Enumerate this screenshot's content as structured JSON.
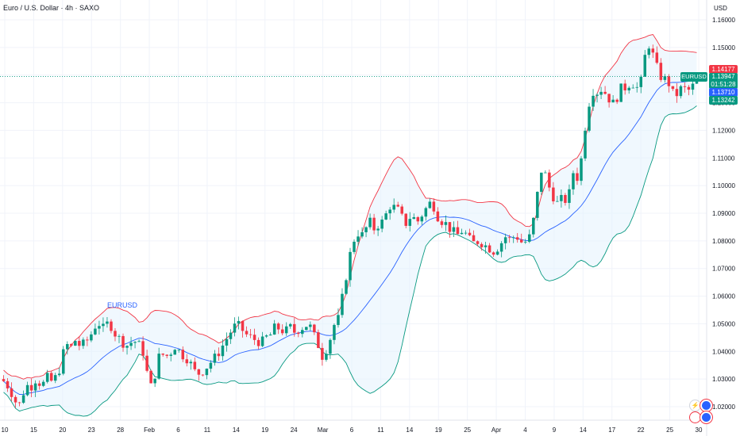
{
  "header": {
    "title": "Euro / U.S. Dollar · 4h · SAXO",
    "currency": "USD"
  },
  "series_label": "EURUSD",
  "price_tags": {
    "upper": "1.14177",
    "last": "1.13947",
    "countdown": "01:51:28",
    "middle": "1.13710",
    "lower": "1.13242",
    "symbol": "EURUSD"
  },
  "colors": {
    "up": "#089981",
    "down": "#f23645",
    "upper_band": "#f23645",
    "basis": "#2962ff",
    "lower_band": "#089981",
    "band_fill": "#e3f2fd",
    "grid": "#f0f3fa"
  },
  "icons": [
    "lightning-icon",
    "link-icon"
  ],
  "chart_data": {
    "type": "candlestick",
    "title": "Euro / U.S. Dollar · 4h · SAXO",
    "xlabel": "",
    "ylabel": "USD",
    "ylim": [
      1.015,
      1.163
    ],
    "grid": true,
    "x_ticks": [
      "10",
      "15",
      "20",
      "23",
      "28",
      "Feb",
      "6",
      "11",
      "14",
      "19",
      "24",
      "Mar",
      "6",
      "11",
      "14",
      "19",
      "25",
      "Apr",
      "4",
      "9",
      "14",
      "17",
      "22",
      "25",
      "30"
    ],
    "y_ticks": [
      1.02,
      1.03,
      1.04,
      1.05,
      1.06,
      1.07,
      1.08,
      1.09,
      1.1,
      1.11,
      1.12,
      1.13,
      1.14,
      1.15,
      1.16
    ],
    "indicator": "Bollinger Bands (20, 2)",
    "close_path": [
      [
        0,
        1.03
      ],
      [
        5,
        1.0285
      ],
      [
        10,
        1.0265
      ],
      [
        14,
        1.024
      ],
      [
        18,
        1.0215
      ],
      [
        22,
        1.0205
      ],
      [
        26,
        1.024
      ],
      [
        31,
        1.028
      ],
      [
        36,
        1.0265
      ],
      [
        41,
        1.03
      ],
      [
        46,
        1.029
      ],
      [
        51,
        1.0275
      ],
      [
        56,
        1.031
      ],
      [
        61,
        1.029
      ],
      [
        66,
        1.03
      ],
      [
        71,
        1.032
      ],
      [
        76,
        1.038
      ],
      [
        80,
        1.043
      ],
      [
        86,
        1.041
      ],
      [
        92,
        1.044
      ],
      [
        98,
        1.042
      ],
      [
        104,
        1.043
      ],
      [
        110,
        1.045
      ],
      [
        116,
        1.049
      ],
      [
        122,
        1.05
      ],
      [
        128,
        1.048
      ],
      [
        134,
        1.051
      ],
      [
        140,
        1.047
      ],
      [
        146,
        1.045
      ],
      [
        152,
        1.043
      ],
      [
        158,
        1.042
      ],
      [
        164,
        1.044
      ],
      [
        170,
        1.043
      ],
      [
        175,
        1.041
      ],
      [
        180,
        1.037
      ],
      [
        184,
        1.026
      ],
      [
        188,
        1.028
      ],
      [
        193,
        1.033
      ],
      [
        198,
        1.04
      ],
      [
        204,
        1.038
      ],
      [
        210,
        1.039
      ],
      [
        216,
        1.042
      ],
      [
        222,
        1.04
      ],
      [
        228,
        1.038
      ],
      [
        234,
        1.037
      ],
      [
        240,
        1.033
      ],
      [
        246,
        1.032
      ],
      [
        252,
        1.033
      ],
      [
        258,
        1.035
      ],
      [
        264,
        1.037
      ],
      [
        270,
        1.039
      ],
      [
        276,
        1.042
      ],
      [
        282,
        1.045
      ],
      [
        288,
        1.048
      ],
      [
        294,
        1.05
      ],
      [
        300,
        1.048
      ],
      [
        306,
        1.046
      ],
      [
        312,
        1.045
      ],
      [
        318,
        1.044
      ],
      [
        324,
        1.043
      ],
      [
        330,
        1.045
      ],
      [
        336,
        1.046
      ],
      [
        342,
        1.049
      ],
      [
        348,
        1.048
      ],
      [
        354,
        1.047
      ],
      [
        360,
        1.049
      ],
      [
        366,
        1.047
      ],
      [
        372,
        1.048
      ],
      [
        378,
        1.049
      ],
      [
        384,
        1.05
      ],
      [
        390,
        1.046
      ],
      [
        396,
        1.042
      ],
      [
        401,
        1.038
      ],
      [
        406,
        1.041
      ],
      [
        411,
        1.045
      ],
      [
        416,
        1.05
      ],
      [
        421,
        1.052
      ],
      [
        426,
        1.06
      ],
      [
        431,
        1.068
      ],
      [
        436,
        1.076
      ],
      [
        441,
        1.081
      ],
      [
        446,
        1.083
      ],
      [
        451,
        1.082
      ],
      [
        456,
        1.085
      ],
      [
        461,
        1.087
      ],
      [
        466,
        1.084
      ],
      [
        471,
        1.086
      ],
      [
        476,
        1.087
      ],
      [
        481,
        1.09
      ],
      [
        486,
        1.093
      ],
      [
        491,
        1.092
      ],
      [
        496,
        1.091
      ],
      [
        501,
        1.088
      ],
      [
        506,
        1.086
      ],
      [
        511,
        1.089
      ],
      [
        516,
        1.088
      ],
      [
        521,
        1.087
      ],
      [
        526,
        1.09
      ],
      [
        531,
        1.092
      ],
      [
        536,
        1.094
      ],
      [
        541,
        1.092
      ],
      [
        546,
        1.088
      ],
      [
        551,
        1.087
      ],
      [
        556,
        1.086
      ],
      [
        561,
        1.084
      ],
      [
        566,
        1.083
      ],
      [
        571,
        1.082
      ],
      [
        576,
        1.084
      ],
      [
        581,
        1.082
      ],
      [
        586,
        1.08
      ],
      [
        591,
        1.079
      ],
      [
        596,
        1.08
      ],
      [
        601,
        1.079
      ],
      [
        606,
        1.078
      ],
      [
        611,
        1.077
      ],
      [
        616,
        1.076
      ],
      [
        621,
        1.078
      ],
      [
        626,
        1.08
      ],
      [
        631,
        1.082
      ],
      [
        636,
        1.08
      ],
      [
        641,
        1.082
      ],
      [
        646,
        1.081
      ],
      [
        651,
        1.079
      ],
      [
        656,
        1.08
      ],
      [
        661,
        1.082
      ],
      [
        666,
        1.09
      ],
      [
        671,
        1.1
      ],
      [
        676,
        1.108
      ],
      [
        681,
        1.102
      ],
      [
        686,
        1.098
      ],
      [
        691,
        1.095
      ],
      [
        696,
        1.093
      ],
      [
        701,
        1.096
      ],
      [
        706,
        1.094
      ],
      [
        711,
        1.099
      ],
      [
        716,
        1.108
      ],
      [
        721,
        1.1
      ],
      [
        726,
        1.115
      ],
      [
        731,
        1.125
      ],
      [
        736,
        1.133
      ],
      [
        741,
        1.135
      ],
      [
        746,
        1.133
      ],
      [
        751,
        1.136
      ],
      [
        756,
        1.132
      ],
      [
        761,
        1.131
      ],
      [
        766,
        1.129
      ],
      [
        771,
        1.134
      ],
      [
        776,
        1.136
      ],
      [
        781,
        1.135
      ],
      [
        786,
        1.138
      ],
      [
        791,
        1.136
      ],
      [
        796,
        1.135
      ],
      [
        801,
        1.14
      ],
      [
        806,
        1.152
      ],
      [
        811,
        1.15
      ],
      [
        816,
        1.145
      ],
      [
        821,
        1.141
      ],
      [
        826,
        1.138
      ],
      [
        831,
        1.139
      ],
      [
        836,
        1.135
      ],
      [
        841,
        1.132
      ],
      [
        846,
        1.134
      ],
      [
        851,
        1.136
      ],
      [
        856,
        1.134
      ],
      [
        861,
        1.135
      ],
      [
        866,
        1.137
      ],
      [
        871,
        1.1395
      ]
    ]
  }
}
